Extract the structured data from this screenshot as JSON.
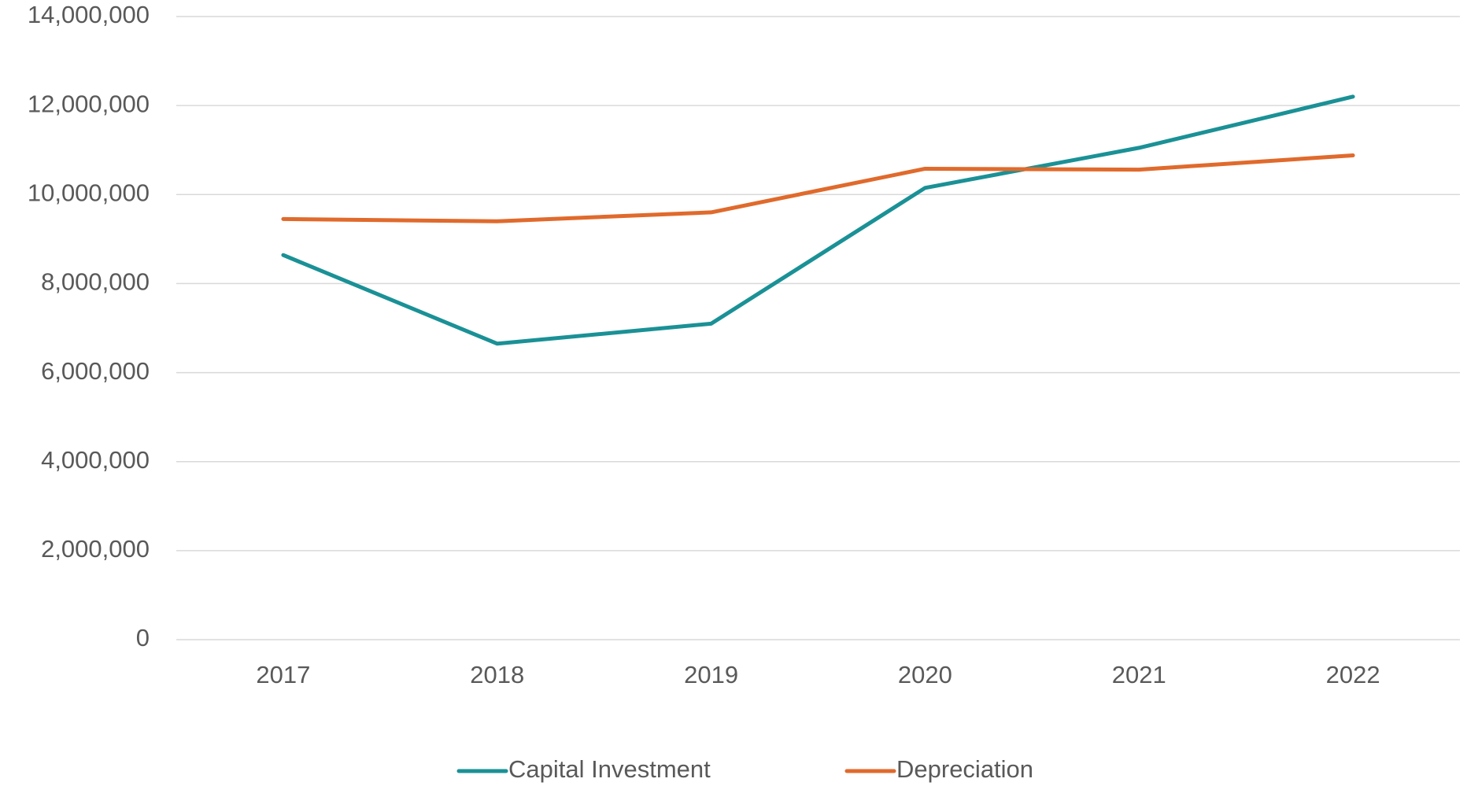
{
  "chart_data": {
    "type": "line",
    "categories": [
      "2017",
      "2018",
      "2019",
      "2020",
      "2021",
      "2022"
    ],
    "series": [
      {
        "name": "Capital Investment",
        "color": "#1a9196",
        "values": [
          8640000,
          6650000,
          7100000,
          10150000,
          11050000,
          12200000
        ]
      },
      {
        "name": "Depreciation",
        "color": "#e06a2c",
        "values": [
          9450000,
          9400000,
          9600000,
          10580000,
          10560000,
          10880000
        ]
      }
    ],
    "ylim": [
      0,
      14000000
    ],
    "yticks": [
      0,
      {
        "value": 2000000,
        "label": "2,000,000"
      },
      {
        "value": 4000000,
        "label": "4,000,000"
      },
      {
        "value": 6000000,
        "label": "6,000,000"
      },
      {
        "value": 8000000,
        "label": "8,000,000"
      },
      {
        "value": 10000000,
        "label": "10,000,000"
      },
      {
        "value": 12000000,
        "label": "12,000,000"
      },
      {
        "value": 14000000,
        "label": "14,000,000"
      }
    ],
    "grid": true,
    "legend": "bottom"
  }
}
